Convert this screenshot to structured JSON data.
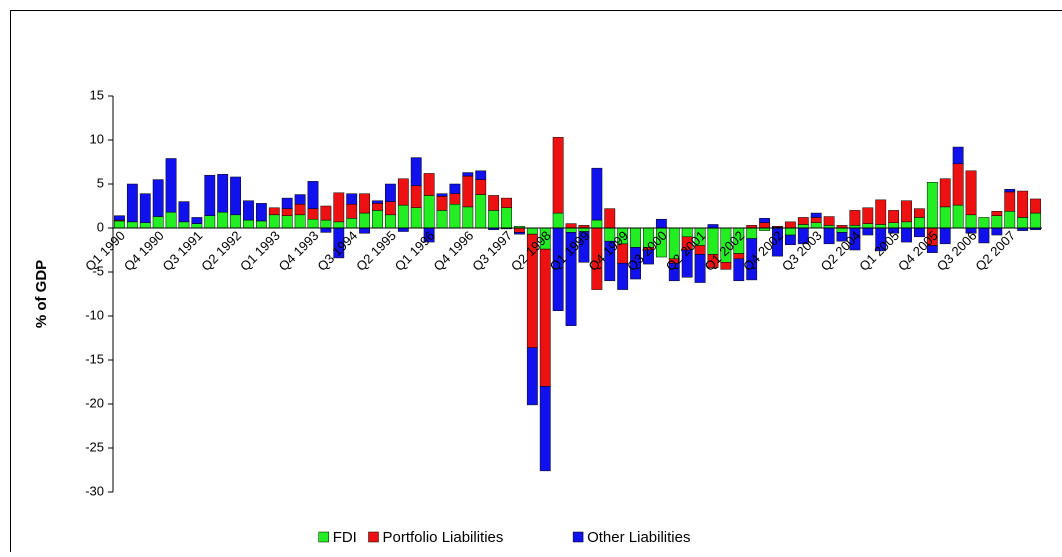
{
  "chart_data": {
    "type": "bar",
    "stacked": true,
    "y_label": "% of GDP",
    "categories": [
      "Q1 1990",
      null,
      null,
      "Q4 1990",
      null,
      null,
      "Q3 1991",
      null,
      null,
      "Q2 1992",
      null,
      null,
      "Q1 1993",
      null,
      null,
      "Q4 1993",
      null,
      null,
      "Q3 1994",
      null,
      null,
      "Q2 1995",
      null,
      null,
      "Q1 1996",
      null,
      null,
      "Q4 1996",
      null,
      null,
      "Q3 1997",
      null,
      null,
      "Q2 1998",
      null,
      null,
      "Q1 1999",
      null,
      null,
      "Q4 1999",
      null,
      null,
      "Q3 2000",
      null,
      null,
      "Q2 2001",
      null,
      null,
      "Q1 2002",
      null,
      null,
      "Q4 2002",
      null,
      null,
      "Q3 2003",
      null,
      null,
      "Q2 2004",
      null,
      null,
      "Q1 2005",
      null,
      null,
      "Q4 2005",
      null,
      null,
      "Q3 2006",
      null,
      null,
      "Q2 2007",
      null,
      null
    ],
    "series": [
      {
        "name": "FDI",
        "color": "#22ee22",
        "values": [
          0.8,
          0.7,
          0.6,
          1.3,
          1.8,
          0.7,
          0.5,
          1.4,
          1.8,
          1.5,
          0.9,
          0.8,
          1.5,
          1.4,
          1.5,
          1.0,
          0.9,
          0.7,
          1.1,
          1.7,
          2.0,
          1.5,
          2.6,
          2.3,
          3.7,
          2.0,
          2.7,
          2.4,
          3.8,
          2.0,
          2.3,
          0.2,
          -0.7,
          -2.4,
          1.7,
          -0.5,
          -0.4,
          0.9,
          -1.5,
          -1.8,
          -2.2,
          -2.2,
          -3.3,
          -3.5,
          -1.0,
          -2.0,
          -3.0,
          -3.9,
          -2.9,
          -1.2,
          -0.3,
          0.1,
          -0.8,
          0.4,
          0.6,
          0.3,
          -0.5,
          0.3,
          0.5,
          0.4,
          0.6,
          0.7,
          1.2,
          5.2,
          2.4,
          2.6,
          1.5,
          1.2,
          1.4,
          1.9,
          1.2,
          1.7
        ]
      },
      {
        "name": "Portfolio Liabilities",
        "color": "#ee1111",
        "values": [
          0.1,
          0,
          0,
          0,
          0,
          0,
          0,
          0,
          0,
          0,
          0,
          0,
          0.8,
          0.8,
          1.2,
          1.2,
          1.6,
          3.3,
          1.6,
          2.2,
          0.8,
          1.5,
          3.0,
          2.5,
          2.5,
          1.6,
          1.2,
          3.5,
          1.7,
          1.7,
          1.1,
          -0.5,
          -12.9,
          -15.6,
          8.6,
          0.5,
          0.3,
          -7.0,
          2.2,
          -2.2,
          0,
          -0.3,
          0,
          -0.5,
          -1.5,
          -1.0,
          -1.5,
          -0.8,
          -0.6,
          0.3,
          0.6,
          0.1,
          0.7,
          0.8,
          0.6,
          1.0,
          0.3,
          1.7,
          1.8,
          2.8,
          1.4,
          2.4,
          1.0,
          -2.0,
          3.2,
          4.7,
          5.0,
          0,
          0.5,
          2.2,
          3.0,
          1.6
        ]
      },
      {
        "name": "Other Liabilities",
        "color": "#1111ee",
        "values": [
          0.5,
          4.3,
          3.3,
          4.2,
          6.1,
          2.3,
          0.7,
          4.6,
          4.3,
          4.3,
          2.2,
          2.0,
          0,
          1.2,
          1.1,
          3.1,
          -0.5,
          -3.4,
          1.2,
          -0.6,
          0.3,
          2.0,
          -0.4,
          3.2,
          -1.6,
          0.3,
          1.1,
          0.4,
          1.0,
          -0.2,
          -0.1,
          -0.2,
          -6.5,
          -9.6,
          -9.4,
          -10.6,
          -3.5,
          5.9,
          -4.5,
          -3.0,
          -3.6,
          -1.6,
          1.0,
          -2.0,
          -3.1,
          -3.2,
          0.4,
          0,
          -2.5,
          -4.7,
          0.5,
          -3.2,
          -1.1,
          -1.8,
          0.5,
          -1.8,
          -1.0,
          -2.5,
          -0.8,
          -2.6,
          -0.6,
          -1.6,
          -1.0,
          -0.8,
          -1.8,
          1.9,
          -0.6,
          -1.7,
          -0.8,
          0.3,
          -0.3,
          -0.2
        ]
      }
    ],
    "ylim": [
      -30,
      15
    ],
    "yticks": [
      -30,
      -25,
      -20,
      -15,
      -10,
      -5,
      0,
      5,
      10,
      15
    ],
    "grid": false,
    "legend": "bottom"
  }
}
